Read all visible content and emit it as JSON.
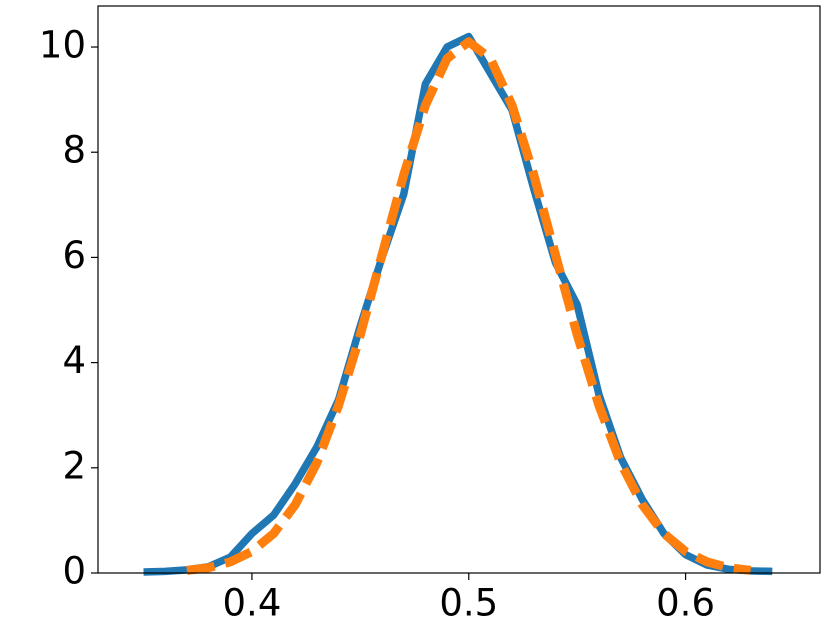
{
  "chart_data": {
    "type": "line",
    "x": [
      0.35,
      0.36,
      0.37,
      0.38,
      0.39,
      0.4,
      0.41,
      0.42,
      0.43,
      0.44,
      0.45,
      0.46,
      0.47,
      0.48,
      0.49,
      0.5,
      0.51,
      0.52,
      0.53,
      0.54,
      0.55,
      0.56,
      0.57,
      0.58,
      0.59,
      0.6,
      0.61,
      0.62,
      0.63,
      0.64
    ],
    "series": [
      {
        "color": "#1f77b4",
        "dash": false,
        "values": [
          0.02,
          0.03,
          0.06,
          0.12,
          0.3,
          0.75,
          1.1,
          1.7,
          2.4,
          3.3,
          4.7,
          6.0,
          7.2,
          9.3,
          10.0,
          10.2,
          9.5,
          8.8,
          7.3,
          5.9,
          5.1,
          3.4,
          2.2,
          1.4,
          0.75,
          0.35,
          0.15,
          0.07,
          0.04,
          0.03
        ]
      },
      {
        "color": "#ff7f0e",
        "dash": true,
        "values": [
          null,
          null,
          0.05,
          0.1,
          0.21,
          0.41,
          0.75,
          1.3,
          2.1,
          3.19,
          4.53,
          6.05,
          7.57,
          8.89,
          9.78,
          10.1,
          9.78,
          8.89,
          7.57,
          6.05,
          4.53,
          3.19,
          2.1,
          1.3,
          0.75,
          0.41,
          0.21,
          0.1,
          0.05,
          null
        ]
      }
    ],
    "xlim": [
      0.329,
      0.662
    ],
    "ylim": [
      0,
      10.78
    ],
    "xticks": [
      0.4,
      0.5,
      0.6
    ],
    "yticks": [
      0,
      2,
      4,
      6,
      8,
      10
    ]
  }
}
